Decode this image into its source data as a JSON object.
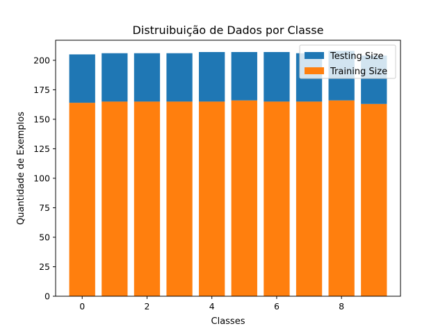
{
  "chart_data": {
    "type": "bar",
    "stacked": true,
    "title": "Distruibuição de Dados por Classe",
    "xlabel": "Classes",
    "ylabel": "Quantidade de Exemplos",
    "x": [
      0,
      1,
      2,
      3,
      4,
      5,
      6,
      7,
      8,
      9
    ],
    "xticks": [
      "0",
      "2",
      "4",
      "6",
      "8"
    ],
    "yticks": [
      "0",
      "25",
      "50",
      "75",
      "100",
      "125",
      "150",
      "175",
      "200"
    ],
    "xlim": [
      -0.82,
      9.82
    ],
    "ylim": [
      0,
      217
    ],
    "grid": false,
    "legend_position": "top-right",
    "series": [
      {
        "name": "Training Size",
        "color": "#ff7f0e",
        "values": [
          164,
          165,
          165,
          165,
          165,
          166,
          165,
          165,
          166,
          163
        ]
      },
      {
        "name": "Testing Size",
        "color": "#1f77b4",
        "values": [
          41,
          41,
          41,
          41,
          42,
          41,
          42,
          41,
          42,
          41
        ]
      }
    ],
    "legend": [
      {
        "name": "Testing Size",
        "color": "#1f77b4"
      },
      {
        "name": "Training Size",
        "color": "#ff7f0e"
      }
    ]
  }
}
